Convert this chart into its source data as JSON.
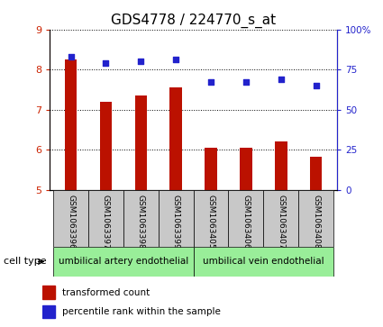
{
  "title": "GDS4778 / 224770_s_at",
  "samples": [
    "GSM1063396",
    "GSM1063397",
    "GSM1063398",
    "GSM1063399",
    "GSM1063405",
    "GSM1063406",
    "GSM1063407",
    "GSM1063408"
  ],
  "transformed_count": [
    8.25,
    7.2,
    7.35,
    7.55,
    6.05,
    6.05,
    6.2,
    5.82
  ],
  "percentile_rank": [
    83,
    79,
    80,
    81,
    67,
    67,
    69,
    65
  ],
  "left_ylim": [
    5,
    9
  ],
  "left_yticks": [
    5,
    6,
    7,
    8,
    9
  ],
  "right_ylim": [
    0,
    100
  ],
  "right_yticks": [
    0,
    25,
    50,
    75,
    100
  ],
  "right_yticklabels": [
    "0",
    "25",
    "50",
    "75",
    "100%"
  ],
  "bar_color": "#bb1100",
  "dot_color": "#2222cc",
  "left_tick_color": "#cc2200",
  "right_tick_color": "#2222cc",
  "title_fontsize": 11,
  "cell_type_groups": [
    {
      "label": "umbilical artery endothelial",
      "start": 0,
      "end": 3,
      "color": "#99ee99"
    },
    {
      "label": "umbilical vein endothelial",
      "start": 4,
      "end": 7,
      "color": "#99ee99"
    }
  ],
  "cell_type_label": "cell type",
  "legend_bar_label": "transformed count",
  "legend_dot_label": "percentile rank within the sample",
  "xticklabel_area_color": "#c8c8c8"
}
